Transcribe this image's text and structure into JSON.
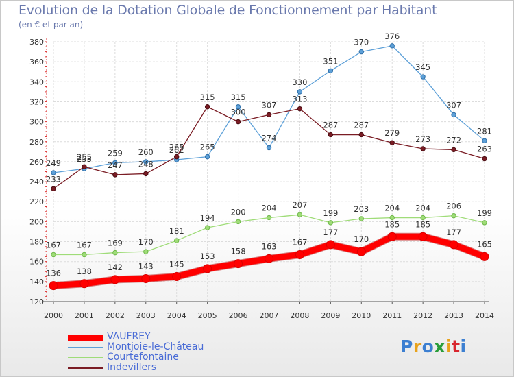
{
  "header": {
    "title": "Evolution de la Dotation Globale de Fonctionnement par Habitant",
    "subtitle": "(en € et par an)"
  },
  "brand": {
    "logo_text": "Proxiti",
    "logo_colors": [
      "#3c7fd1",
      "#e8a21c",
      "#3c7fd1",
      "#2a9d3a",
      "#e8a21c",
      "#d8262e",
      "#3c7fd1"
    ]
  },
  "chart_data": {
    "type": "line",
    "title": "Evolution de la Dotation Globale de Fonctionnement par Habitant",
    "ylabel": "(en € et par an)",
    "x": [
      "2000",
      "2001",
      "2002",
      "2003",
      "2004",
      "2005",
      "2006",
      "2007",
      "2008",
      "2009",
      "2010",
      "2011",
      "2012",
      "2013",
      "2014"
    ],
    "ylim": [
      120,
      380
    ],
    "yticks": [
      120,
      140,
      160,
      180,
      200,
      220,
      240,
      260,
      280,
      300,
      320,
      340,
      360,
      380
    ],
    "grid": true,
    "legend_position": "bottom-left",
    "series": [
      {
        "name": "VAUFREY",
        "color": "#ff0000",
        "values": [
          136,
          138,
          142,
          143,
          145,
          153,
          158,
          163,
          167,
          177,
          170,
          185,
          185,
          177,
          165
        ]
      },
      {
        "name": "Montjoie-le-Château",
        "color": "#5da0d8",
        "values": [
          249,
          253,
          259,
          260,
          262,
          265,
          315,
          274,
          330,
          351,
          370,
          376,
          345,
          307,
          281
        ]
      },
      {
        "name": "Courtefontaine",
        "color": "#9fdc78",
        "values": [
          167,
          167,
          169,
          170,
          181,
          194,
          200,
          204,
          207,
          199,
          203,
          204,
          204,
          206,
          199
        ]
      },
      {
        "name": "Indevillers",
        "color": "#7a1c24",
        "values": [
          233,
          255,
          247,
          248,
          265,
          315,
          300,
          307,
          313,
          287,
          287,
          279,
          273,
          272,
          263
        ]
      }
    ]
  }
}
